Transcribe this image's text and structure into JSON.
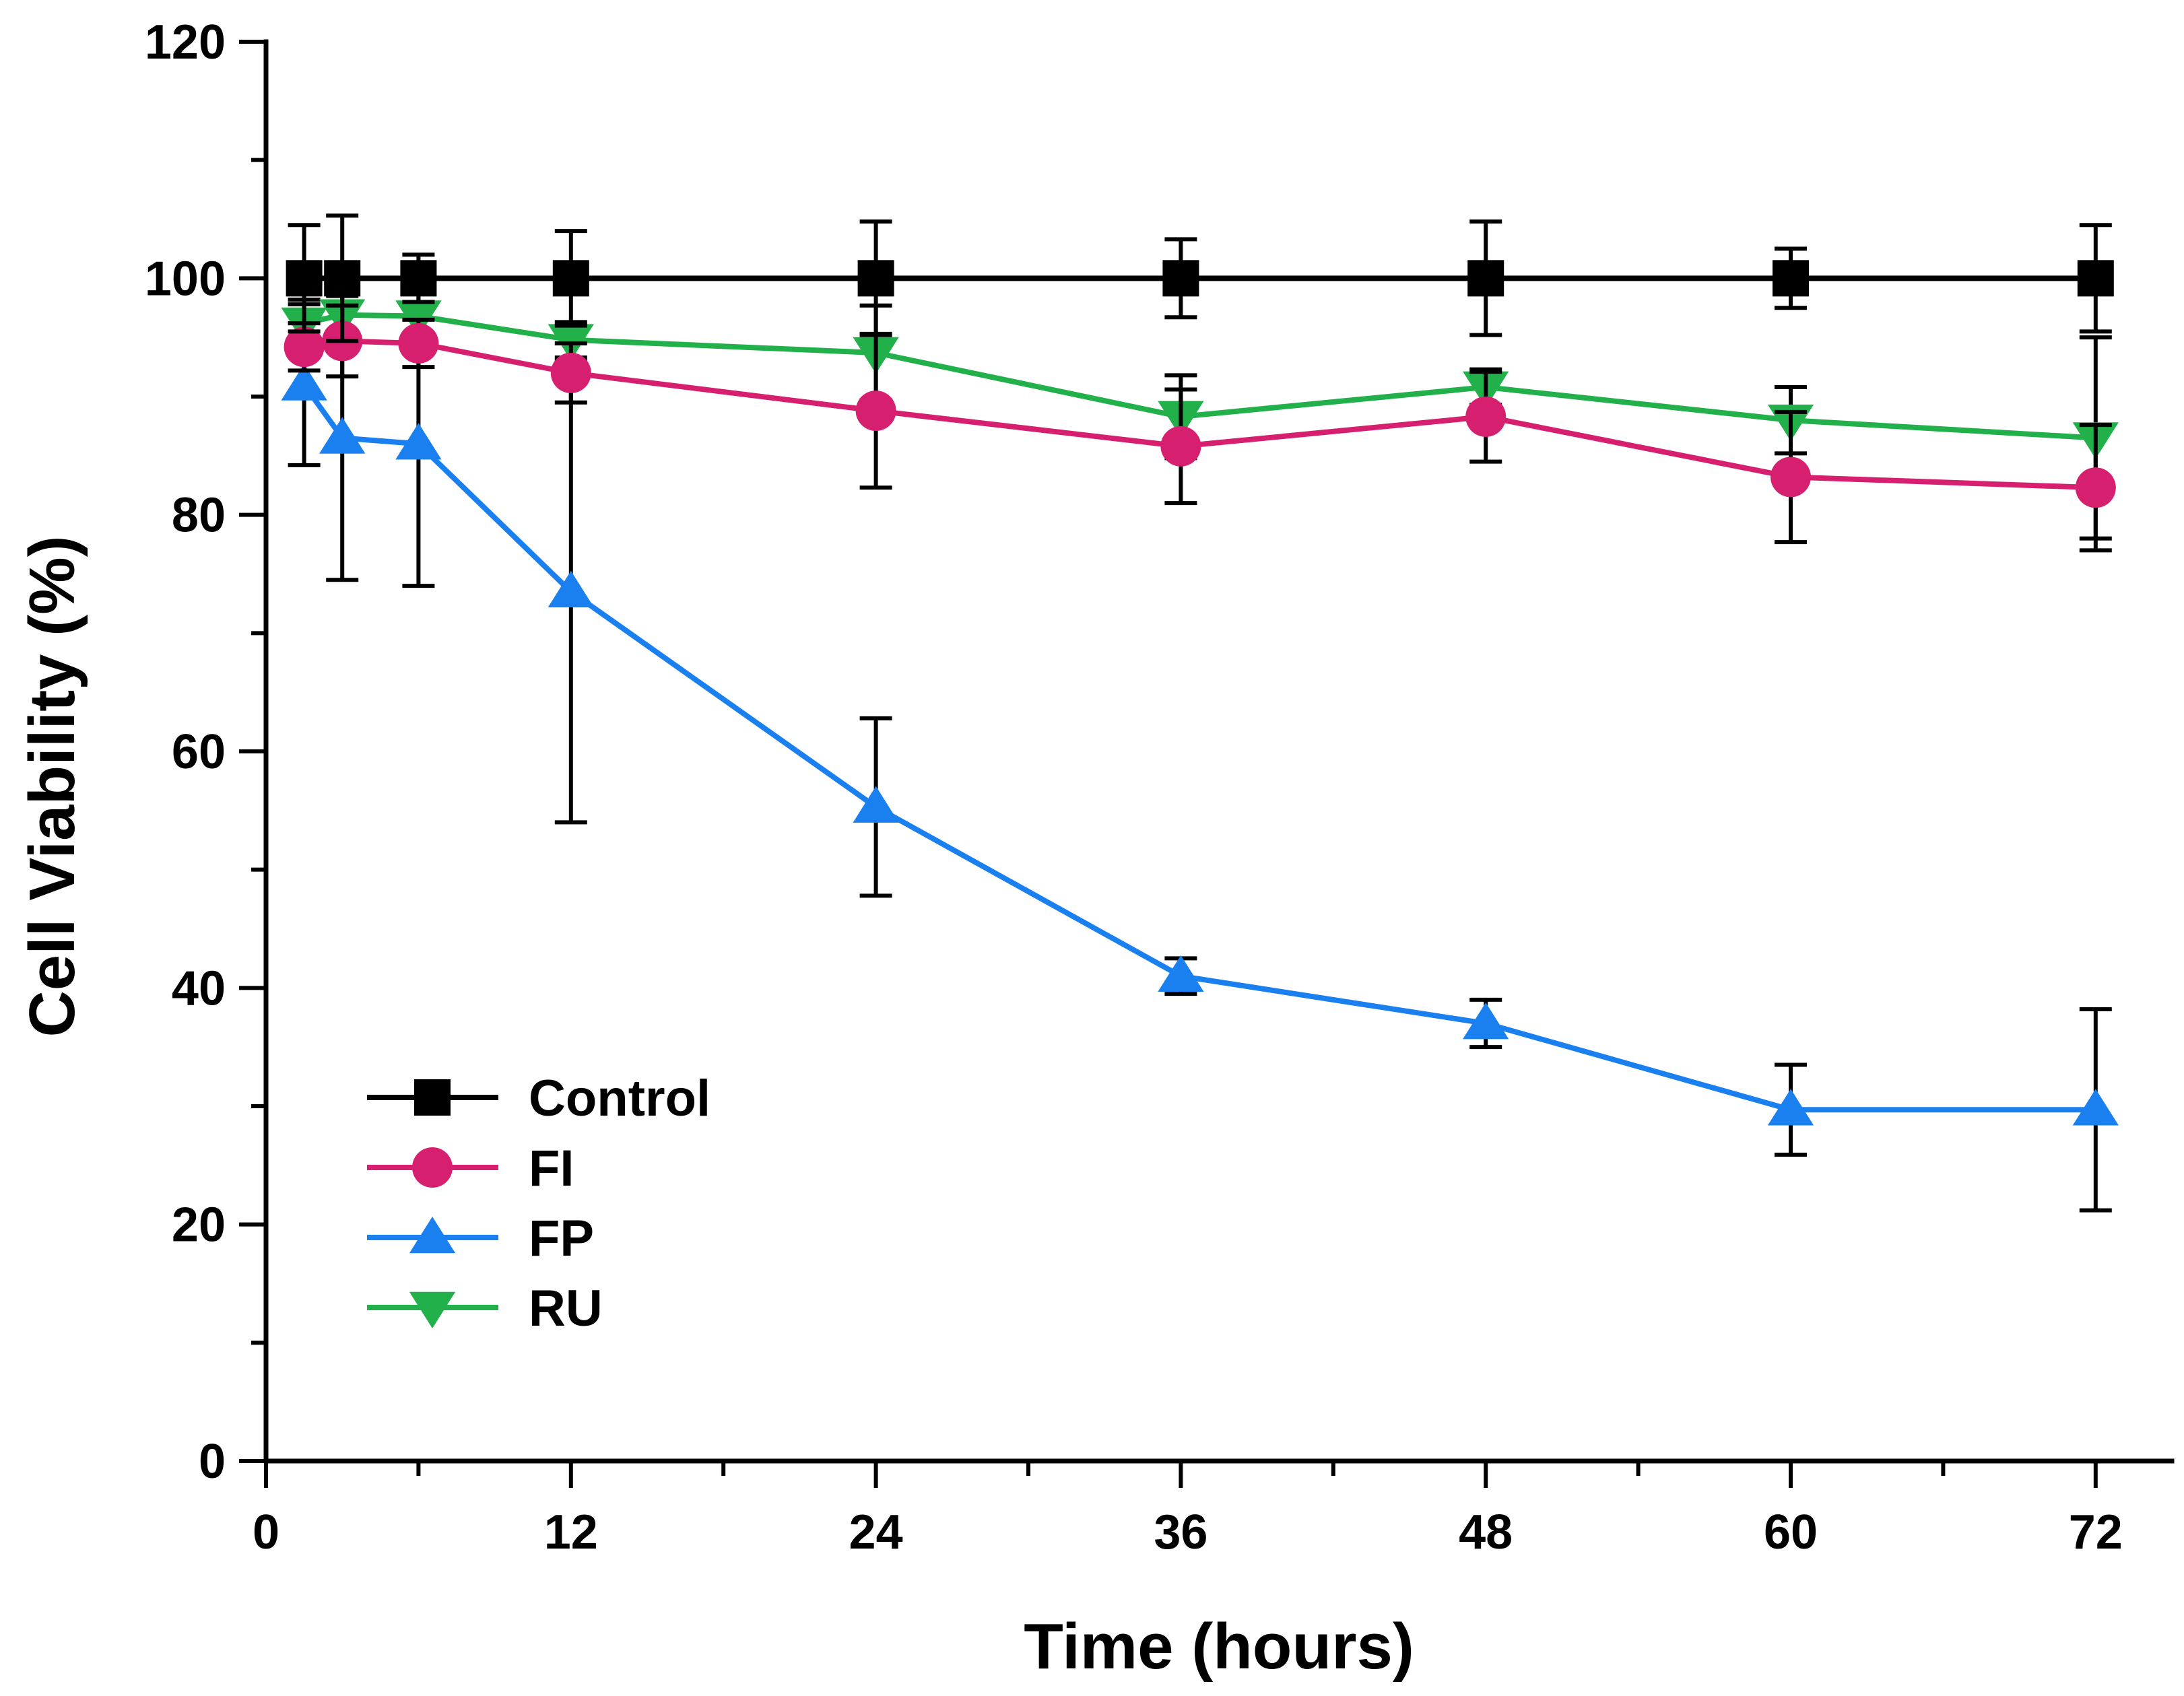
{
  "chart_data": {
    "type": "line",
    "title": "",
    "xlabel": "Time (hours)",
    "ylabel": "Cell Viability (%)",
    "xlim": [
      0,
      75
    ],
    "ylim": [
      0,
      120
    ],
    "xticks": [
      0,
      12,
      24,
      36,
      48,
      60,
      72
    ],
    "xtick_labels": [
      "0",
      "12",
      "24",
      "36",
      "48",
      "60",
      "72"
    ],
    "xminor_step": 6,
    "yticks": [
      0,
      20,
      40,
      60,
      80,
      100,
      120
    ],
    "ytick_labels": [
      "0",
      "20",
      "40",
      "60",
      "80",
      "100",
      "120"
    ],
    "yminor_step": 10,
    "grid": false,
    "legend_position": "bottom-left",
    "series": [
      {
        "name": "Control",
        "color": "#000000",
        "marker": "square",
        "x": [
          1.5,
          3,
          6,
          12,
          24,
          36,
          48,
          60,
          72
        ],
        "y": [
          100,
          100,
          100,
          100,
          100,
          100,
          100,
          100,
          100
        ],
        "err": [
          4.5,
          5.3,
          2.0,
          4.0,
          4.8,
          3.3,
          4.8,
          2.5,
          4.5
        ]
      },
      {
        "name": "FI",
        "color": "#d6206f",
        "marker": "circle",
        "x": [
          1.5,
          3,
          6,
          12,
          24,
          36,
          48,
          60,
          72
        ],
        "y": [
          94.2,
          94.7,
          94.5,
          92.0,
          88.8,
          85.8,
          88.3,
          83.2,
          82.3
        ],
        "err": [
          2.0,
          3.0,
          2.0,
          2.5,
          6.5,
          4.8,
          3.8,
          5.5,
          5.3
        ]
      },
      {
        "name": "FP",
        "color": "#1a80f0",
        "marker": "triangle-up",
        "x": [
          1.5,
          3,
          6,
          12,
          24,
          36,
          48,
          60,
          72
        ],
        "y": [
          91.0,
          86.5,
          86.0,
          73.5,
          55.3,
          41.0,
          37.0,
          29.7,
          29.7
        ],
        "err": [
          6.8,
          12.0,
          12.0,
          19.5,
          7.5,
          1.5,
          2.0,
          3.8,
          8.5
        ]
      },
      {
        "name": "RU",
        "color": "#22b04a",
        "marker": "triangle-down",
        "x": [
          1.5,
          3,
          6,
          12,
          24,
          36,
          48,
          60,
          72
        ],
        "y": [
          96.2,
          96.9,
          96.8,
          94.8,
          93.7,
          88.3,
          90.8,
          88.0,
          86.5
        ],
        "err": [
          2.0,
          2.5,
          2.0,
          1.5,
          4.0,
          3.5,
          1.5,
          2.8,
          8.5
        ]
      }
    ]
  }
}
